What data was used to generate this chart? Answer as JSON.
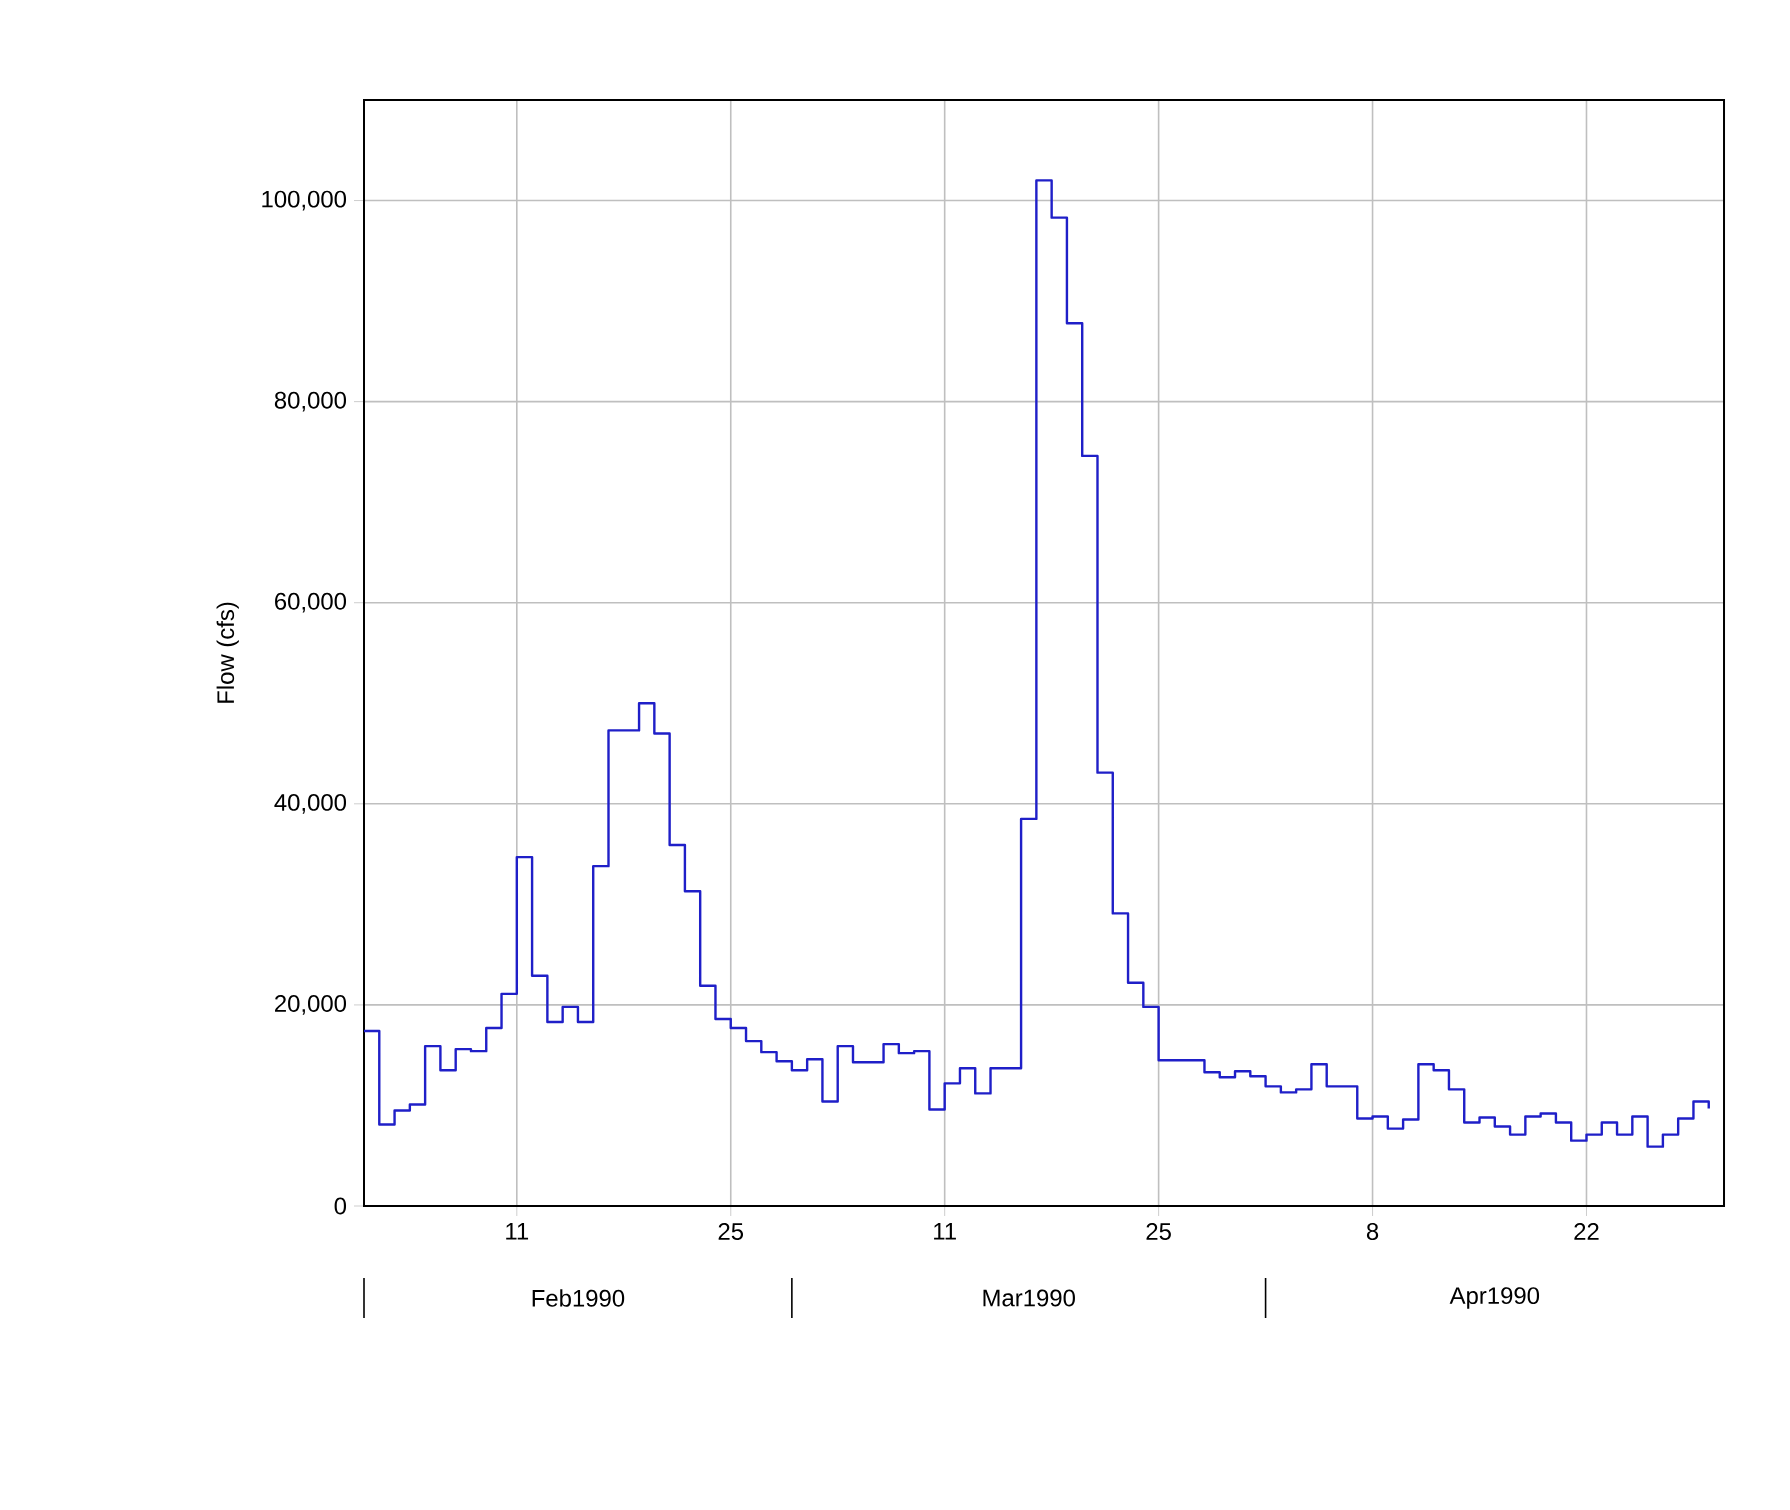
{
  "chart_data": {
    "type": "step",
    "ylabel": "Flow (cfs)",
    "color": "#1f1fc8",
    "grid": true,
    "xlim": [
      "1990-02-01",
      "1990-05-01"
    ],
    "ylim": [
      0,
      110000
    ],
    "xticks": [
      {
        "value": "1990-02-11",
        "label": "11"
      },
      {
        "value": "1990-02-25",
        "label": "25"
      },
      {
        "value": "1990-03-11",
        "label": "11"
      },
      {
        "value": "1990-03-25",
        "label": "25"
      },
      {
        "value": "1990-04-08",
        "label": "8"
      },
      {
        "value": "1990-04-22",
        "label": "22"
      }
    ],
    "yticks": [
      {
        "value": 0,
        "label": "0"
      },
      {
        "value": 20000,
        "label": "20,000"
      },
      {
        "value": 40000,
        "label": "40,000"
      },
      {
        "value": 60000,
        "label": "60,000"
      },
      {
        "value": 80000,
        "label": "80,000"
      },
      {
        "value": 100000,
        "label": "100,000"
      }
    ],
    "annotations": [
      "Feb1990",
      "Mar1990",
      "Apr1990"
    ],
    "x": [
      "1990-02-01",
      "1990-02-02",
      "1990-02-03",
      "1990-02-04",
      "1990-02-05",
      "1990-02-06",
      "1990-02-07",
      "1990-02-08",
      "1990-02-09",
      "1990-02-10",
      "1990-02-11",
      "1990-02-12",
      "1990-02-13",
      "1990-02-14",
      "1990-02-15",
      "1990-02-16",
      "1990-02-17",
      "1990-02-18",
      "1990-02-19",
      "1990-02-20",
      "1990-02-21",
      "1990-02-22",
      "1990-02-23",
      "1990-02-24",
      "1990-02-25",
      "1990-02-26",
      "1990-02-27",
      "1990-02-28",
      "1990-03-01",
      "1990-03-02",
      "1990-03-03",
      "1990-03-04",
      "1990-03-05",
      "1990-03-06",
      "1990-03-07",
      "1990-03-08",
      "1990-03-09",
      "1990-03-10",
      "1990-03-11",
      "1990-03-12",
      "1990-03-13",
      "1990-03-14",
      "1990-03-15",
      "1990-03-16",
      "1990-03-17",
      "1990-03-18",
      "1990-03-19",
      "1990-03-20",
      "1990-03-21",
      "1990-03-22",
      "1990-03-23",
      "1990-03-24",
      "1990-03-25",
      "1990-03-26",
      "1990-03-27",
      "1990-03-28",
      "1990-03-29",
      "1990-03-30",
      "1990-03-31",
      "1990-04-01",
      "1990-04-02",
      "1990-04-03",
      "1990-04-04",
      "1990-04-05",
      "1990-04-06",
      "1990-04-07",
      "1990-04-08",
      "1990-04-09",
      "1990-04-10",
      "1990-04-11",
      "1990-04-12",
      "1990-04-13",
      "1990-04-14",
      "1990-04-15",
      "1990-04-16",
      "1990-04-17",
      "1990-04-18",
      "1990-04-19",
      "1990-04-20",
      "1990-04-21",
      "1990-04-22",
      "1990-04-23",
      "1990-04-24",
      "1990-04-25",
      "1990-04-26",
      "1990-04-27",
      "1990-04-28",
      "1990-04-29",
      "1990-04-30"
    ],
    "values": [
      17400,
      8100,
      9500,
      10100,
      15900,
      13500,
      15600,
      15400,
      17700,
      21100,
      34700,
      22900,
      18300,
      19800,
      18300,
      33800,
      47300,
      47300,
      50000,
      47000,
      35900,
      31300,
      21900,
      18600,
      17700,
      16400,
      15300,
      14400,
      13500,
      14600,
      10400,
      15900,
      14300,
      14300,
      16100,
      15200,
      15400,
      9600,
      12200,
      13700,
      11200,
      13700,
      13700,
      38500,
      102000,
      98300,
      87800,
      74600,
      43100,
      29100,
      22200,
      19800,
      14500,
      14500,
      14500,
      13300,
      12800,
      13400,
      12900,
      11900,
      11300,
      11600,
      14100,
      11900,
      11900,
      8700,
      8900,
      7700,
      8600,
      14100,
      13500,
      11600,
      8300,
      8800,
      7900,
      7100,
      8900,
      9200,
      8300,
      6500,
      7100,
      8300,
      7100,
      8900,
      5900,
      7100,
      8700,
      10400,
      9700
    ]
  }
}
